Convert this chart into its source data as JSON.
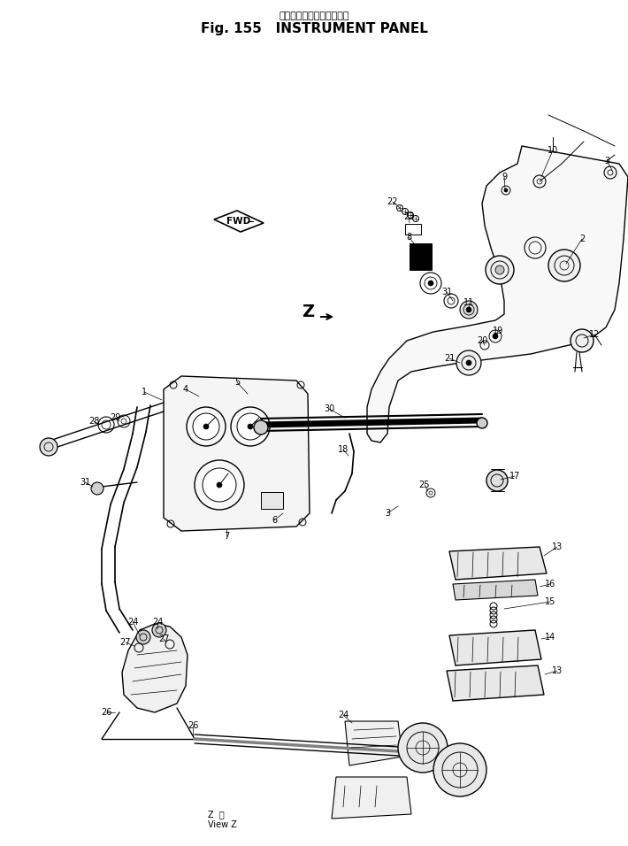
{
  "title_japanese": "インスツルメント　パネル",
  "title_english": "Fig. 155   INSTRUMENT PANEL",
  "view_label": "Z 矢\nView Z",
  "background_color": "#ffffff",
  "line_color": "#000000",
  "fig_width": 7.1,
  "fig_height": 9.56,
  "dpi": 100
}
